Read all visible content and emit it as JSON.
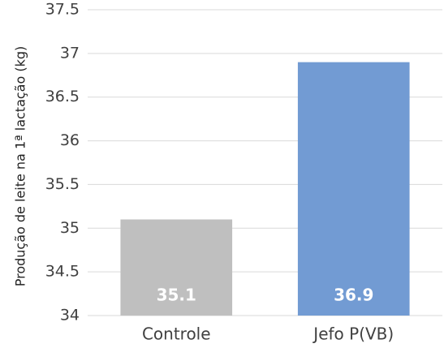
{
  "chart_data": {
    "type": "bar",
    "y_label": "Produção de leite na 1ª lactação (kg)",
    "categories": [
      "Controle",
      "Jefo P(VB)"
    ],
    "values": [
      35.1,
      36.9
    ],
    "colors": [
      "#bfbfbf",
      "#729bd3"
    ],
    "ylim": [
      34,
      37.5
    ],
    "yticks": [
      34,
      34.5,
      35,
      35.5,
      36,
      36.5,
      37,
      37.5
    ],
    "grid": true
  }
}
